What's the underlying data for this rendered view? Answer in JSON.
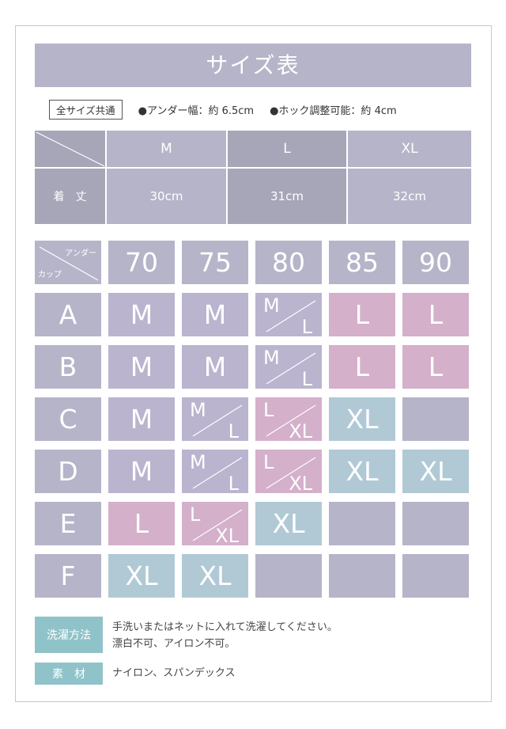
{
  "title": "サイズ表",
  "note": {
    "badge": "全サイズ共通",
    "item1": "●アンダー幅：約 6.5cm",
    "item2": "●ホック調整可能：約 4cm"
  },
  "length_table": {
    "row_label": "着　丈",
    "sizes": [
      "M",
      "L",
      "XL"
    ],
    "values": [
      "30cm",
      "31cm",
      "32cm"
    ]
  },
  "size_grid": {
    "corner_top": "アンダー",
    "corner_bottom": "カップ",
    "unders": [
      "70",
      "75",
      "80",
      "85",
      "90"
    ],
    "rows": [
      {
        "cup": "A",
        "cells": [
          "M",
          "M",
          "M/L",
          "L",
          "L"
        ]
      },
      {
        "cup": "B",
        "cells": [
          "M",
          "M",
          "M/L",
          "L",
          "L"
        ]
      },
      {
        "cup": "C",
        "cells": [
          "M",
          "M/L",
          "L/XL",
          "XL",
          ""
        ]
      },
      {
        "cup": "D",
        "cells": [
          "M",
          "M/L",
          "L/XL",
          "XL",
          "XL"
        ]
      },
      {
        "cup": "E",
        "cells": [
          "L",
          "L/XL",
          "XL",
          "",
          ""
        ]
      },
      {
        "cup": "F",
        "cells": [
          "XL",
          "XL",
          "",
          "",
          ""
        ]
      }
    ]
  },
  "colors": {
    "header": "#aeadc0",
    "M": "#bab4cf",
    "M/L": "#bab4cf",
    "L": "#d4b0ca",
    "L/XL": "#d4b0ca",
    "XL": "#b0c9d5",
    "empty": "#b5b4c9",
    "label": "#8fc3c9"
  },
  "care": {
    "wash_label": "洗濯方法",
    "wash_line1": "手洗いまたはネットに入れて洗濯してください。",
    "wash_line2": "漂白不可、アイロン不可。",
    "material_label": "素　材",
    "material": "ナイロン、スパンデックス"
  }
}
